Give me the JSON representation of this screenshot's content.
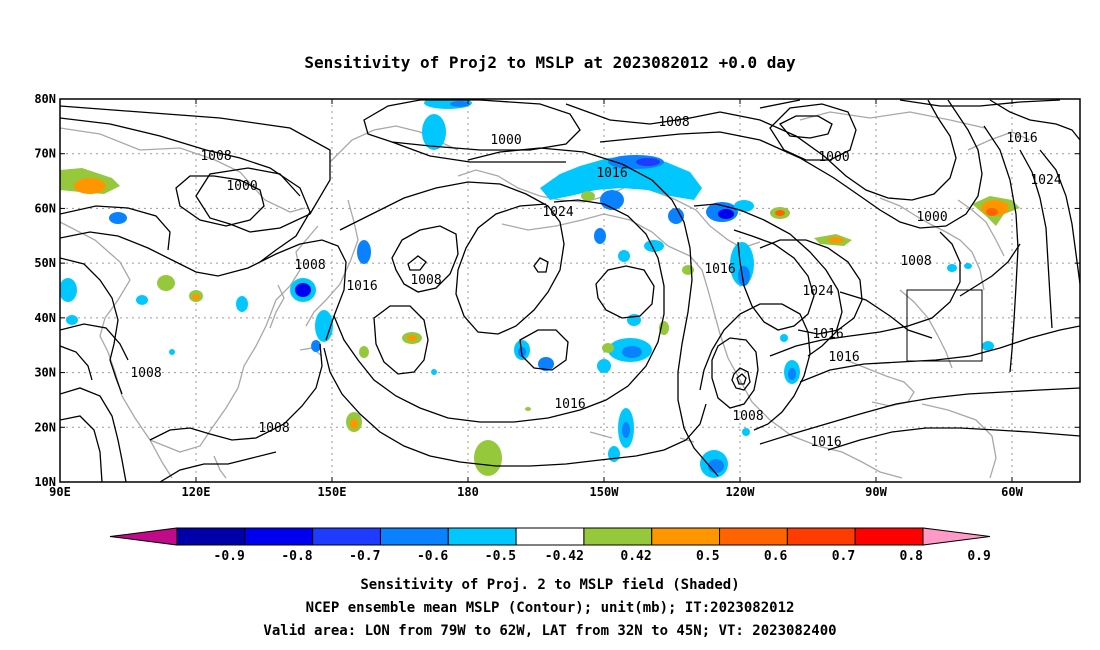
{
  "title": "Sensitivity of Proj2 to MSLP at 2023082012 +0.0 day",
  "lat_labels": [
    "80N",
    "70N",
    "60N",
    "50N",
    "40N",
    "30N",
    "20N",
    "10N"
  ],
  "lon_labels": [
    "90E",
    "120E",
    "150E",
    "180",
    "150W",
    "120W",
    "90W",
    "60W"
  ],
  "colorbar": {
    "labels": [
      "-0.9",
      "-0.8",
      "-0.7",
      "-0.6",
      "-0.5",
      "-0.42",
      "0.42",
      "0.5",
      "0.6",
      "0.7",
      "0.8",
      "0.9"
    ],
    "colors": [
      "#c00a8a",
      "#0000a8",
      "#0000f0",
      "#1e3cff",
      "#0a82ff",
      "#00c8ff",
      "#ffffff",
      "#96c83c",
      "#ff9600",
      "#ff6400",
      "#ff3c00",
      "#ff0000",
      "#ff9ac8"
    ]
  },
  "contour_labels": [
    {
      "text": "1000"
    },
    {
      "text": "1008"
    },
    {
      "text": "1000"
    },
    {
      "text": "1008"
    },
    {
      "text": "1016"
    },
    {
      "text": "1024"
    },
    {
      "text": "1008"
    },
    {
      "text": "1008"
    },
    {
      "text": "1016"
    },
    {
      "text": "1016"
    },
    {
      "text": "1000"
    },
    {
      "text": "1016"
    },
    {
      "text": "1024"
    },
    {
      "text": "1000"
    },
    {
      "text": "1008"
    },
    {
      "text": "1024"
    },
    {
      "text": "1016"
    },
    {
      "text": "1016"
    },
    {
      "text": "1008"
    },
    {
      "text": "1016"
    },
    {
      "text": "1008"
    },
    {
      "text": "1008"
    },
    {
      "text": "1016"
    }
  ],
  "valid_box": {
    "lon_from": "79W",
    "lon_to": "62W",
    "lat_from": "32N",
    "lat_to": "45N"
  },
  "footer": {
    "line1": "Sensitivity of Proj. 2 to MSLP field (Shaded)",
    "line2": "NCEP ensemble mean MSLP (Contour); unit(mb); IT:2023082012",
    "line3": "Valid area: LON from 79W to 62W, LAT from 32N to 45N; VT: 2023082400"
  }
}
